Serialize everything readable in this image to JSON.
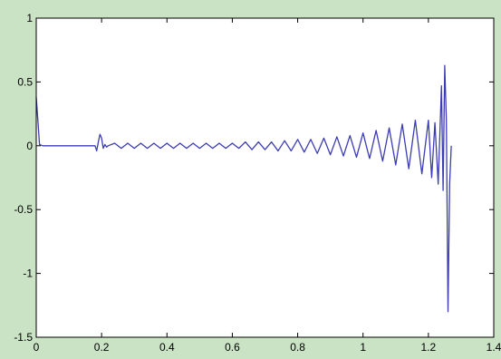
{
  "chart_data": {
    "type": "line",
    "title": "",
    "xlabel": "",
    "ylabel": "",
    "xlim": [
      0,
      1.4
    ],
    "ylim": [
      -1.5,
      1
    ],
    "xticks": [
      0,
      0.2,
      0.4,
      0.6,
      0.8,
      1,
      1.2,
      1.4
    ],
    "xtick_labels": [
      "0",
      "0.2",
      "0.4",
      "0.6",
      "0.8",
      "1",
      "1.2",
      "1.4"
    ],
    "yticks": [
      1,
      0.5,
      0,
      -0.5,
      -1,
      -1.5
    ],
    "ytick_labels": [
      "1",
      "0.5",
      "0",
      "-0.5",
      "-1",
      "-1.5"
    ],
    "grid": false,
    "legend": "none",
    "colors": {
      "figure_bg": "#c9e3c4",
      "axes_bg": "#ffffff",
      "line": "#3c3cb4"
    },
    "series": [
      {
        "x": [
          0,
          0.005,
          0.01,
          0.02,
          0.04,
          0.06,
          0.08,
          0.1,
          0.12,
          0.14,
          0.16,
          0.18,
          0.185,
          0.19,
          0.195,
          0.2,
          0.205,
          0.21,
          0.215,
          0.22,
          0.24,
          0.26,
          0.28,
          0.3,
          0.32,
          0.34,
          0.36,
          0.38,
          0.4,
          0.42,
          0.44,
          0.46,
          0.48,
          0.5,
          0.52,
          0.54,
          0.56,
          0.58,
          0.6,
          0.62,
          0.64,
          0.66,
          0.68,
          0.7,
          0.72,
          0.74,
          0.76,
          0.78,
          0.8,
          0.82,
          0.84,
          0.86,
          0.88,
          0.9,
          0.92,
          0.94,
          0.96,
          0.98,
          1.0,
          1.02,
          1.04,
          1.06,
          1.08,
          1.1,
          1.12,
          1.14,
          1.16,
          1.18,
          1.2,
          1.21,
          1.22,
          1.23,
          1.24,
          1.245,
          1.25,
          1.255,
          1.26,
          1.265,
          1.27
        ],
        "y": [
          0.38,
          0.2,
          0.01,
          0.0,
          0.0,
          0.0,
          0.0,
          0.0,
          0.0,
          0.0,
          0.0,
          0.0,
          -0.04,
          0.03,
          0.09,
          0.06,
          -0.02,
          0.01,
          -0.01,
          0.0,
          0.02,
          -0.02,
          0.02,
          -0.02,
          0.02,
          -0.02,
          0.02,
          -0.02,
          0.02,
          -0.02,
          0.02,
          -0.02,
          0.02,
          -0.02,
          0.02,
          -0.02,
          0.02,
          -0.02,
          0.02,
          -0.02,
          0.03,
          -0.03,
          0.03,
          -0.03,
          0.03,
          -0.04,
          0.04,
          -0.04,
          0.05,
          -0.05,
          0.05,
          -0.06,
          0.06,
          -0.07,
          0.07,
          -0.08,
          0.08,
          -0.09,
          0.1,
          -0.1,
          0.12,
          -0.12,
          0.14,
          -0.15,
          0.17,
          -0.18,
          0.2,
          -0.22,
          0.2,
          -0.25,
          0.18,
          -0.3,
          0.47,
          -0.35,
          0.63,
          0.2,
          -1.3,
          -0.3,
          0.0
        ]
      }
    ]
  }
}
